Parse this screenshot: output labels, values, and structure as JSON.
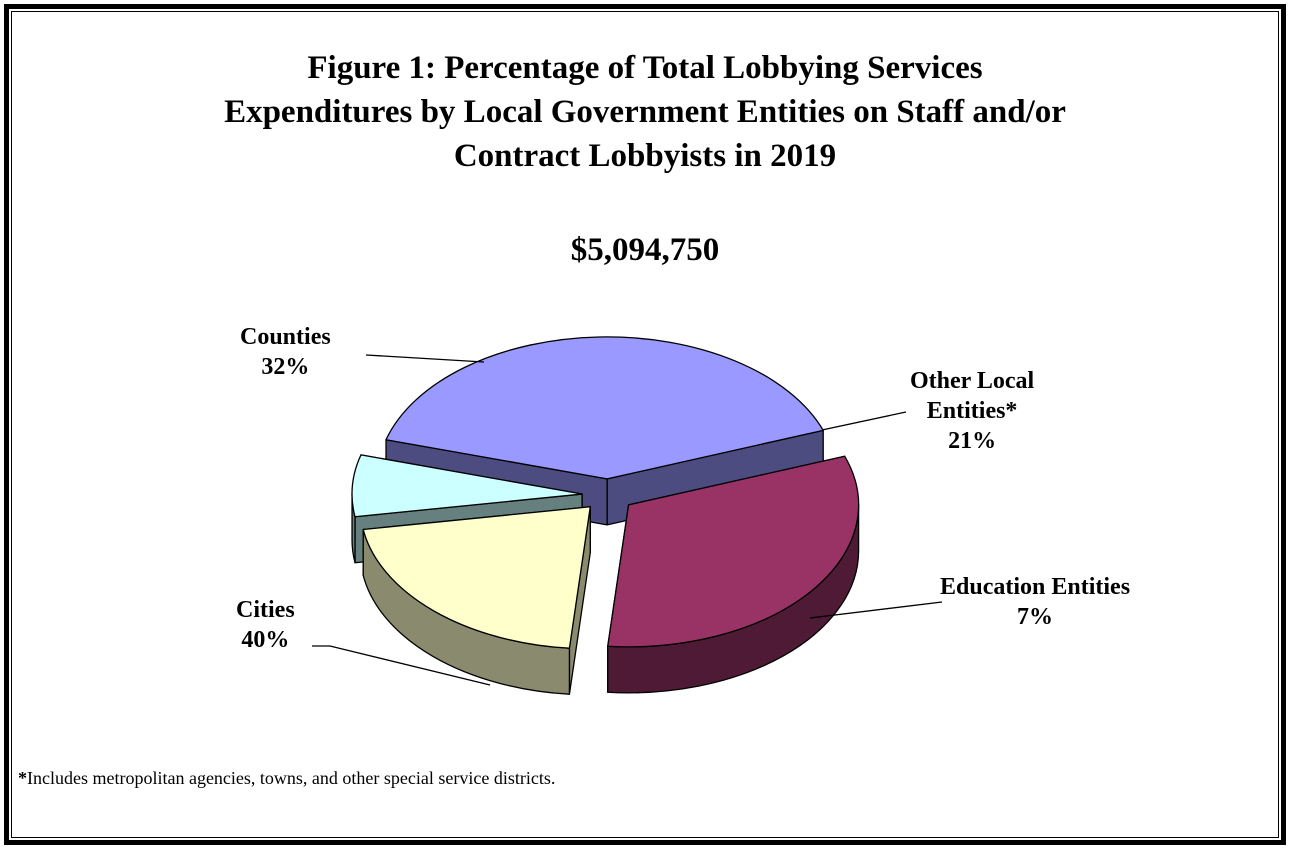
{
  "chart_data": {
    "type": "pie",
    "title_lines": [
      "Figure 1:  Percentage of Total Lobbying Services",
      "Expenditures by Local Government Entities on Staff and/or",
      "Contract Lobbyists in 2019"
    ],
    "subtitle": "$5,094,750",
    "slices": [
      {
        "label_lines": [
          "Counties"
        ],
        "value": 32,
        "value_label": "32%",
        "color": "#993366",
        "side_color": "#4F1A35"
      },
      {
        "label_lines": [
          "Other Local",
          "Entities*"
        ],
        "value": 21,
        "value_label": "21%",
        "color": "#FFFFCC",
        "side_color": "#8A8A6E"
      },
      {
        "label_lines": [
          "Education Entities"
        ],
        "value": 7,
        "value_label": "7%",
        "color": "#CCFFFF",
        "side_color": "#668080"
      },
      {
        "label_lines": [
          "Cities"
        ],
        "value": 40,
        "value_label": "40%",
        "color": "#9999FF",
        "side_color": "#4C4C80"
      }
    ],
    "exploded": true,
    "three_d": true,
    "footnote_mark": "*",
    "footnote": "Includes metropolitan agencies, towns, and other special service districts."
  }
}
